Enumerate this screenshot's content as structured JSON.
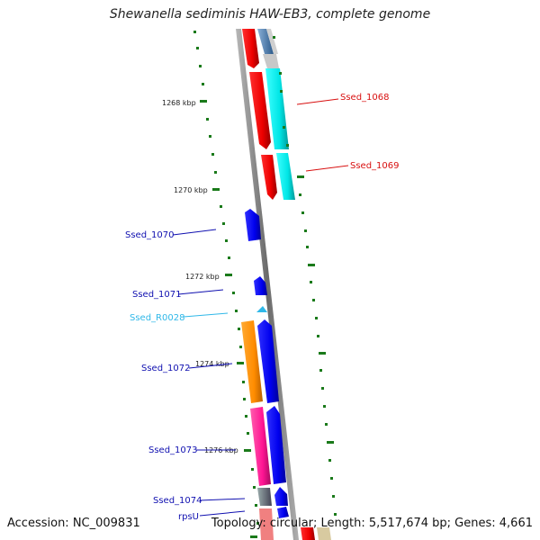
{
  "title": "Shewanella sediminis HAW-EB3, complete genome",
  "footer": {
    "accession": "Accession: NC_009831",
    "summary": "Topology: circular; Length: 5,517,674 bp; Genes: 4,661"
  },
  "kbp_ticks": [
    "1268 kbp",
    "1270 kbp",
    "1272 kbp",
    "1274 kbp",
    "1276 kbp"
  ],
  "gene_labels": [
    {
      "name": "Ssed_1068",
      "color": "#d81010"
    },
    {
      "name": "Ssed_1069",
      "color": "#d81010"
    },
    {
      "name": "Ssed_1070",
      "color": "#1010b0"
    },
    {
      "name": "Ssed_1071",
      "color": "#1010b0"
    },
    {
      "name": "Ssed_R0028",
      "color": "#30b8e8"
    },
    {
      "name": "Ssed_1072",
      "color": "#1010b0"
    },
    {
      "name": "Ssed_1073",
      "color": "#1010b0"
    },
    {
      "name": "Ssed_1074",
      "color": "#1010b0"
    },
    {
      "name": "rpsU",
      "color": "#1010b0"
    }
  ],
  "colors": {
    "backbone": "#808080",
    "red_gene": "#ff0000",
    "cyan_gene": "#00e8e8",
    "blue_gene": "#0000ee",
    "orange_gene": "#ff8c00",
    "pink_gene": "#ff1493",
    "tick_green": "#1a7a1a",
    "rna_gene": "#30b8e8"
  }
}
